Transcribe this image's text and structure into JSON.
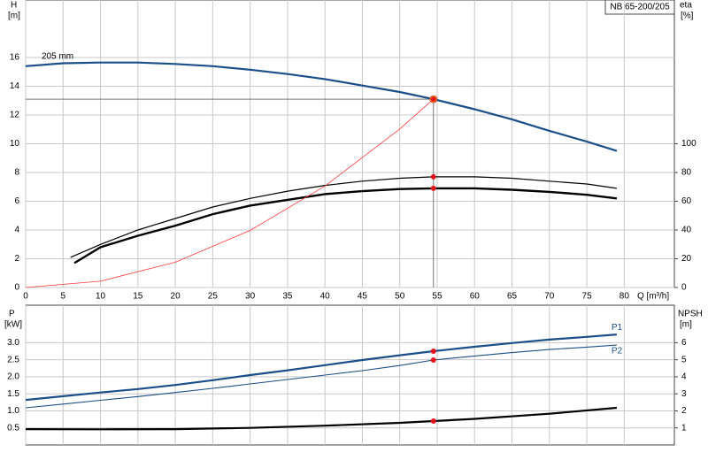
{
  "chart_data": [
    {
      "type": "line",
      "legend_box": "NB 65-200/205",
      "y_label": "H",
      "y_unit": "[m]",
      "y2_label": "eta",
      "y2_unit": "[%]",
      "x_label": "Q [m³/h]",
      "xlim": [
        0,
        86.7
      ],
      "xticks": [
        0,
        5,
        10,
        15,
        20,
        25,
        30,
        35,
        40,
        45,
        50,
        55,
        60,
        65,
        70,
        75,
        80
      ],
      "ylim": [
        0,
        20
      ],
      "yticks": [
        0,
        2,
        4,
        6,
        8,
        10,
        12,
        14,
        16
      ],
      "y2lim": [
        0,
        200
      ],
      "y2ticks": [
        0,
        20,
        40,
        60,
        80,
        100
      ],
      "grid": true,
      "duty_x": 54.5,
      "duty_color": "#f5c518",
      "marker_color": "#e8141c",
      "series": [
        {
          "name": "205 mm",
          "color": "#1a4f8a",
          "width": 2.2,
          "axis": "y",
          "x": [
            0,
            5,
            10,
            15,
            20,
            25,
            30,
            35,
            40,
            45,
            50,
            54.5,
            60,
            65,
            70,
            75,
            79
          ],
          "values": [
            15.4,
            15.6,
            15.65,
            15.65,
            15.55,
            15.4,
            15.15,
            14.85,
            14.5,
            14.05,
            13.6,
            13.1,
            12.4,
            11.7,
            10.9,
            10.15,
            9.5
          ]
        },
        {
          "color": "#000000",
          "width": 1.2,
          "axis": "y2",
          "x": [
            6,
            10,
            15,
            20,
            25,
            30,
            35,
            40,
            45,
            50,
            54.5,
            60,
            65,
            70,
            75,
            79
          ],
          "values": [
            21,
            30,
            40,
            48,
            56,
            62,
            67,
            71,
            74,
            76,
            77,
            77,
            76,
            74,
            72,
            69
          ]
        },
        {
          "color": "#000000",
          "width": 2.4,
          "axis": "y2",
          "x": [
            6.5,
            10,
            15,
            20,
            25,
            30,
            35,
            40,
            45,
            50,
            54.5,
            60,
            65,
            70,
            75,
            79
          ],
          "values": [
            17,
            28,
            36,
            43,
            51,
            57,
            61,
            65,
            67,
            68.5,
            69,
            69,
            68,
            66.5,
            64.5,
            62
          ]
        },
        {
          "color": "#ff3a3a",
          "width": 0.8,
          "axis": "y",
          "x": [
            0,
            10,
            20,
            30,
            40,
            50,
            54.5
          ],
          "values": [
            0,
            0.44,
            1.76,
            3.97,
            7.06,
            11.03,
            13.1
          ]
        }
      ]
    },
    {
      "type": "line",
      "y_label": "P",
      "y_unit": "[kW]",
      "y2_label": "NPSH",
      "y2_unit": "[m]",
      "xlim": [
        0,
        86.7
      ],
      "ylim": [
        0,
        4.1
      ],
      "yticks": [
        0.5,
        {
          "value": 1,
          "label": "1.0"
        },
        1.5,
        {
          "value": 2,
          "label": "2.0"
        },
        2.5,
        {
          "value": 3,
          "label": "3.0"
        }
      ],
      "y2lim": [
        0,
        8.2
      ],
      "y2ticks": [
        1,
        2,
        3,
        4,
        5,
        6
      ],
      "grid": true,
      "duty_x": 54.5,
      "marker_color": "#e8141c",
      "series": [
        {
          "name": "P1",
          "color": "#1a4f8a",
          "width": 2.2,
          "axis": "y",
          "x": [
            0,
            5,
            10,
            15,
            20,
            25,
            30,
            35,
            40,
            45,
            50,
            54.5,
            60,
            65,
            70,
            75,
            79
          ],
          "values": [
            1.32,
            1.43,
            1.54,
            1.64,
            1.76,
            1.9,
            2.05,
            2.19,
            2.34,
            2.49,
            2.63,
            2.75,
            2.88,
            2.99,
            3.09,
            3.17,
            3.24
          ]
        },
        {
          "name": "P2",
          "color": "#1a4f8a",
          "width": 1.1,
          "axis": "y",
          "x": [
            0,
            5,
            10,
            15,
            20,
            25,
            30,
            35,
            40,
            45,
            50,
            54.5,
            60,
            65,
            70,
            75,
            79
          ],
          "values": [
            1.09,
            1.2,
            1.31,
            1.42,
            1.54,
            1.66,
            1.79,
            1.92,
            2.05,
            2.18,
            2.33,
            2.49,
            2.61,
            2.71,
            2.8,
            2.87,
            2.93
          ]
        },
        {
          "color": "#000000",
          "width": 2.2,
          "axis": "y2",
          "x": [
            0,
            10,
            20,
            30,
            40,
            50,
            54.5,
            60,
            70,
            79
          ],
          "values": [
            0.93,
            0.92,
            0.93,
            1.0,
            1.13,
            1.3,
            1.4,
            1.53,
            1.83,
            2.18
          ]
        }
      ]
    }
  ]
}
